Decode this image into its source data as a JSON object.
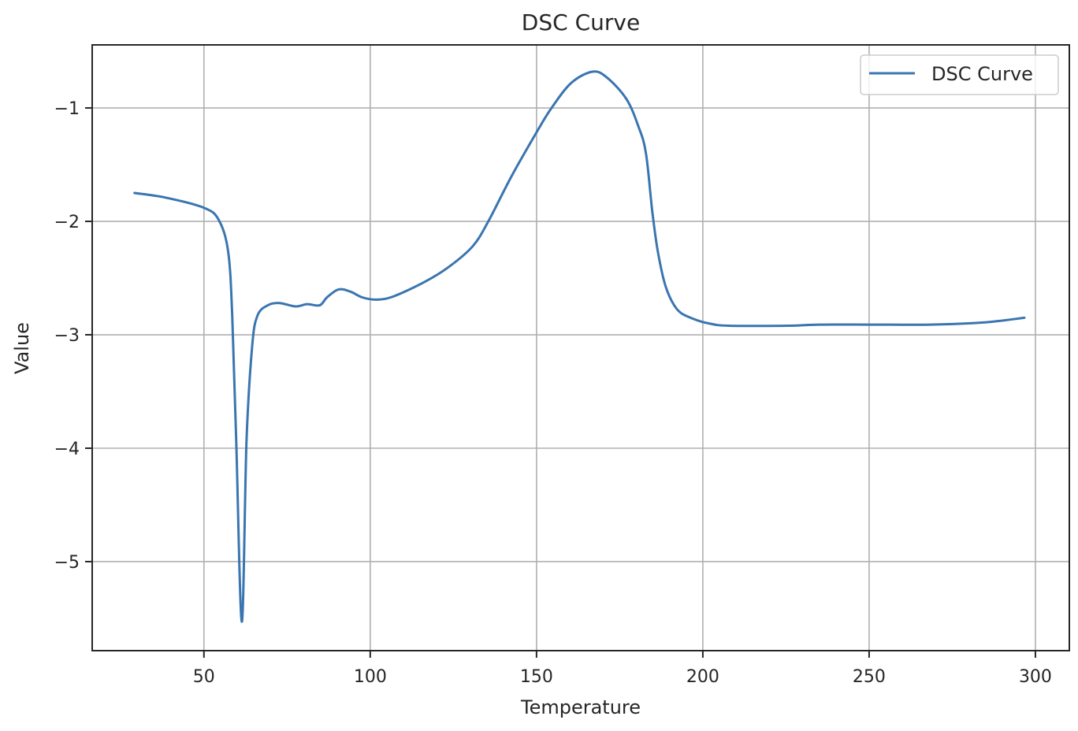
{
  "chart_data": {
    "type": "line",
    "title": "DSC Curve",
    "xlabel": "Temperature",
    "ylabel": "Value",
    "xlim": [
      16.4,
      310.2
    ],
    "ylim": [
      -5.785,
      -0.444
    ],
    "xticks": [
      50,
      100,
      150,
      200,
      250,
      300
    ],
    "xtick_labels": [
      "50",
      "100",
      "150",
      "200",
      "250",
      "300"
    ],
    "yticks": [
      -1,
      -2,
      -3,
      -4,
      -5
    ],
    "ytick_labels": [
      "−1",
      "−2",
      "−3",
      "−4",
      "−5"
    ],
    "grid": true,
    "legend": {
      "position": "upper right",
      "entries": [
        "DSC Curve"
      ]
    },
    "series": [
      {
        "name": "DSC Curve",
        "color": "#3a75b0",
        "x": [
          29.1,
          38.4,
          50.0,
          54.5,
          57.3,
          58.5,
          59.7,
          61.4,
          62.8,
          64.5,
          66.1,
          69.2,
          72.7,
          77.5,
          81.0,
          84.8,
          87.0,
          90.5,
          94.1,
          97.6,
          101.9,
          107.1,
          116.6,
          123.7,
          130.8,
          135.5,
          142.7,
          150.5,
          154.5,
          160.4,
          166.8,
          171.1,
          177.0,
          180.6,
          182.9,
          184.8,
          186.5,
          188.9,
          192.4,
          197.2,
          201.9,
          207.8,
          225.6,
          235.1,
          250.7,
          268.2,
          284.8,
          296.7
        ],
        "y": [
          -1.75,
          -1.79,
          -1.88,
          -1.99,
          -2.27,
          -2.83,
          -3.94,
          -5.53,
          -3.94,
          -3.1,
          -2.83,
          -2.74,
          -2.72,
          -2.75,
          -2.73,
          -2.74,
          -2.67,
          -2.6,
          -2.62,
          -2.67,
          -2.69,
          -2.66,
          -2.53,
          -2.4,
          -2.22,
          -2.0,
          -1.59,
          -1.19,
          -1.0,
          -0.78,
          -0.68,
          -0.73,
          -0.92,
          -1.16,
          -1.4,
          -1.91,
          -2.27,
          -2.58,
          -2.78,
          -2.86,
          -2.9,
          -2.92,
          -2.92,
          -2.91,
          -2.91,
          -2.91,
          -2.89,
          -2.85
        ]
      }
    ]
  },
  "colors": {
    "line": "#3a75b0",
    "grid": "#b0b0b0",
    "axes": "#262626",
    "legend_border": "#cccccc"
  }
}
